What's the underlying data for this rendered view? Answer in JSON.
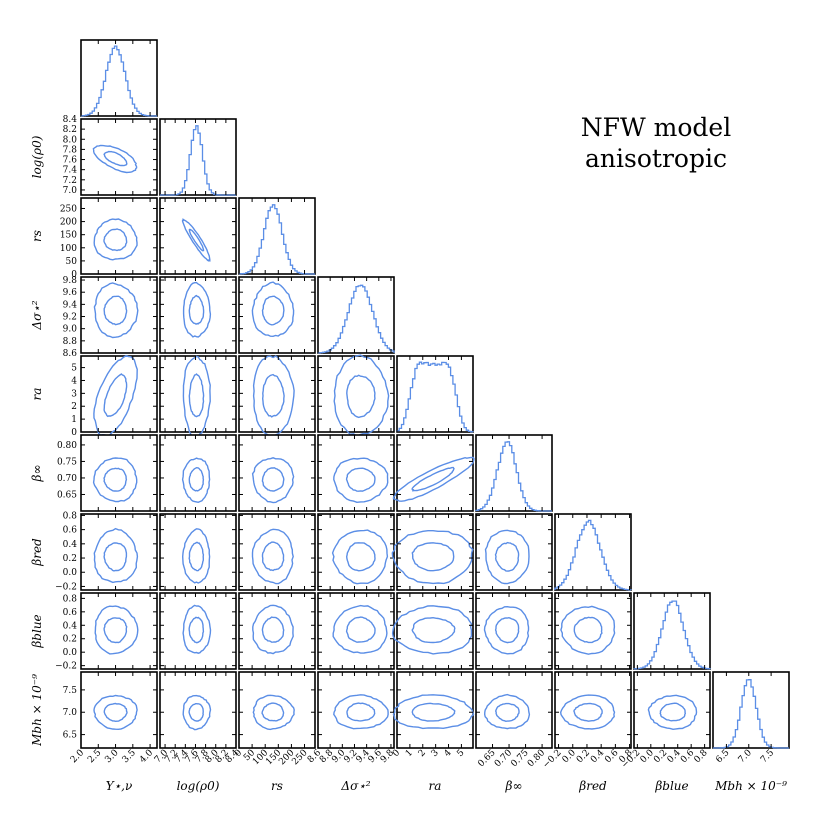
{
  "annotation": {
    "line1": "NFW model",
    "line2": "anisotropic"
  },
  "chart_data": {
    "type": "corner",
    "params": [
      {
        "label": "Υ⋆,ν",
        "range": [
          2.0,
          4.2
        ],
        "ticks": [
          2.0,
          2.5,
          3.0,
          3.5,
          4.0
        ],
        "tick_labels": [
          "2.0",
          "2.5",
          "3.0",
          "3.5",
          "4.0"
        ],
        "mean": 3.0,
        "sd": 0.28
      },
      {
        "label": "log(ρ0)",
        "range": [
          6.9,
          8.4
        ],
        "ticks": [
          7.0,
          7.2,
          7.4,
          7.6,
          7.8,
          8.0,
          8.2,
          8.4
        ],
        "tick_labels": [
          "7.0",
          "7.2",
          "7.4",
          "7.6",
          "7.8",
          "8.0",
          "8.2",
          "8.4"
        ],
        "mean": 7.62,
        "sd": 0.12
      },
      {
        "label": "rs",
        "range": [
          0,
          290
        ],
        "ticks": [
          0,
          50,
          100,
          150,
          200,
          250
        ],
        "tick_labels": [
          "0",
          "50",
          "100",
          "150",
          "200",
          "250"
        ],
        "mean": 130,
        "sd": 35
      },
      {
        "label": "Δσ⋆²",
        "range": [
          8.6,
          9.85
        ],
        "ticks": [
          8.6,
          8.8,
          9.0,
          9.2,
          9.4,
          9.6,
          9.8
        ],
        "tick_labels": [
          "8.6",
          "8.8",
          "9.0",
          "9.2",
          "9.4",
          "9.6",
          "9.8"
        ],
        "mean": 9.3,
        "sd": 0.2
      },
      {
        "label": "ra",
        "range": [
          0,
          5.9
        ],
        "ticks": [
          0,
          1,
          2,
          3,
          4,
          5
        ],
        "tick_labels": [
          "0",
          "1",
          "2",
          "3",
          "4",
          "5"
        ],
        "mean": 2.8,
        "sd": 1.4
      },
      {
        "label": "β∞",
        "range": [
          0.6,
          0.83
        ],
        "ticks": [
          0.65,
          0.7,
          0.75,
          0.8
        ],
        "tick_labels": [
          "0.65",
          "0.70",
          "0.75",
          "0.80"
        ],
        "mean": 0.695,
        "sd": 0.03
      },
      {
        "label": "βred",
        "range": [
          -0.25,
          0.82
        ],
        "ticks": [
          -0.2,
          0.0,
          0.2,
          0.4,
          0.6,
          0.8
        ],
        "tick_labels": [
          "−0.2",
          "0.0",
          "0.2",
          "0.4",
          "0.6",
          "0.8"
        ],
        "mean": 0.22,
        "sd": 0.17
      },
      {
        "label": "βblue",
        "range": [
          -0.25,
          0.88
        ],
        "ticks": [
          -0.2,
          0.0,
          0.2,
          0.4,
          0.6,
          0.8
        ],
        "tick_labels": [
          "−0.2",
          "0.0",
          "0.2",
          "0.4",
          "0.6",
          "0.8"
        ],
        "mean": 0.33,
        "sd": 0.16
      },
      {
        "label": "Mbh × 10⁻⁹",
        "range": [
          6.2,
          7.9
        ],
        "ticks": [
          6.5,
          7.0,
          7.5
        ],
        "tick_labels": [
          "6.5",
          "7.0",
          "7.5"
        ],
        "mean": 7.0,
        "sd": 0.17
      }
    ],
    "correlations": {
      "0-1": -0.6,
      "1-2": -0.93,
      "4-5": 0.88,
      "0-4": 0.55
    },
    "contour_levels": [
      "1σ",
      "2σ"
    ],
    "line_color": "#5b8ee6"
  }
}
